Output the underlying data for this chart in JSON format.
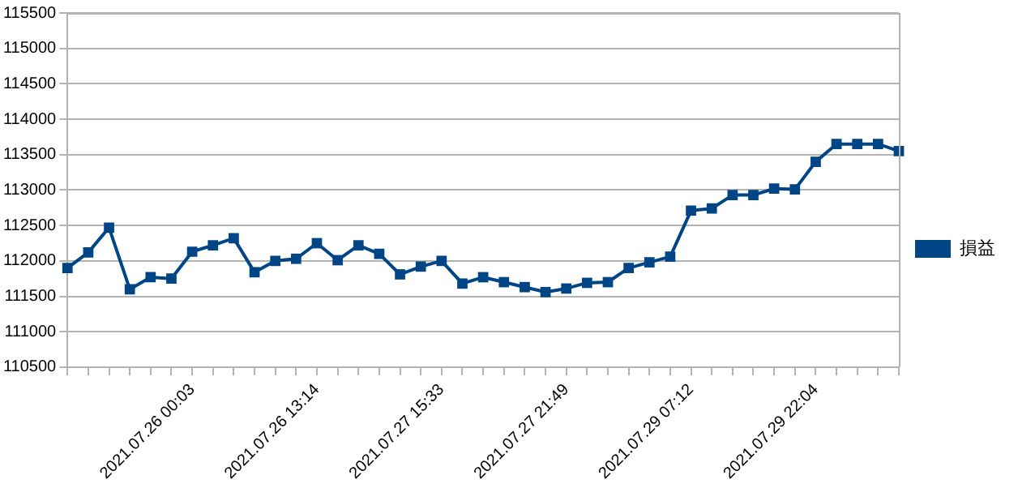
{
  "chart_data": {
    "type": "line",
    "categories": [
      null,
      null,
      null,
      null,
      null,
      null,
      "2021.07.26 00:03",
      null,
      null,
      null,
      null,
      null,
      "2021.07.26 13:14",
      null,
      null,
      null,
      null,
      null,
      "2021.07.27 15:33",
      null,
      null,
      null,
      null,
      null,
      "2021.07.27 21:49",
      null,
      null,
      null,
      null,
      null,
      "2021.07.29 07:12",
      null,
      null,
      null,
      null,
      null,
      "2021.07.29 22:04",
      null,
      null,
      null,
      null
    ],
    "series": [
      {
        "name": "損益",
        "color": "#004586",
        "values": [
          111900,
          112120,
          112470,
          111600,
          111770,
          111750,
          112130,
          112220,
          112320,
          111840,
          112000,
          112030,
          112250,
          112010,
          112220,
          112100,
          111810,
          111920,
          112000,
          111680,
          111770,
          111700,
          111630,
          111560,
          111610,
          111690,
          111700,
          111900,
          111980,
          112060,
          112710,
          112740,
          112930,
          112930,
          113020,
          113010,
          113400,
          113650,
          113650,
          113650,
          113550
        ]
      }
    ],
    "ylim": [
      110500,
      115500
    ],
    "yticks": [
      110500,
      111000,
      111500,
      112000,
      112500,
      113000,
      113500,
      114000,
      114500,
      115000,
      115500
    ],
    "grid": "y",
    "legend": "right",
    "marker": "square",
    "line_style": "solid"
  }
}
